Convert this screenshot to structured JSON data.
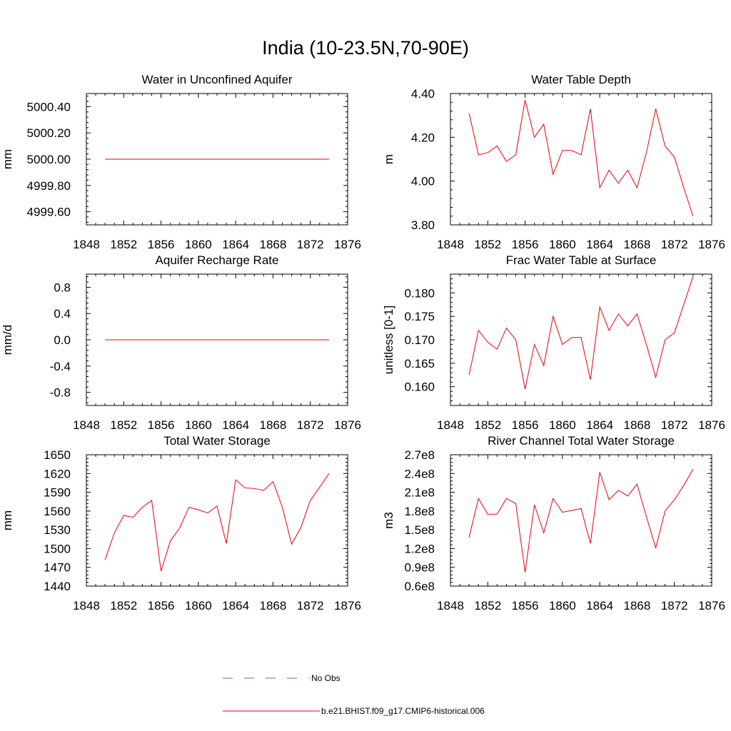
{
  "figure": {
    "title": "India (10-23.5N,70-90E)",
    "series_color": "#e8000b",
    "obs_color": "#6666aa"
  },
  "legend": [
    {
      "label": "No Obs",
      "style": "dashed",
      "color": "#6666aa"
    },
    {
      "label": "b.e21.BHIST.f09_g17.CMIP6-historical.006",
      "style": "solid",
      "color": "#e8000b"
    }
  ],
  "chart_data": [
    {
      "type": "line",
      "title": "Water in Unconfined Aquifer",
      "ylabel": "mm",
      "xlim": [
        1848,
        1876
      ],
      "ylim": [
        4999.5,
        5000.5
      ],
      "xticks": [
        1848,
        1852,
        1856,
        1860,
        1864,
        1868,
        1872,
        1876
      ],
      "yticks": [
        4999.6,
        4999.8,
        5000.0,
        5000.2,
        5000.4
      ],
      "ytick_labels": [
        "4999.60",
        "4999.80",
        "5000.00",
        "5000.20",
        "5000.40"
      ],
      "x": [
        1850,
        1851,
        1852,
        1853,
        1854,
        1855,
        1856,
        1857,
        1858,
        1859,
        1860,
        1861,
        1862,
        1863,
        1864,
        1865,
        1866,
        1867,
        1868,
        1869,
        1870,
        1871,
        1872,
        1873,
        1874
      ],
      "values": [
        5000,
        5000,
        5000,
        5000,
        5000,
        5000,
        5000,
        5000,
        5000,
        5000,
        5000,
        5000,
        5000,
        5000,
        5000,
        5000,
        5000,
        5000,
        5000,
        5000,
        5000,
        5000,
        5000,
        5000,
        5000
      ]
    },
    {
      "type": "line",
      "title": "Water Table Depth",
      "ylabel": "m",
      "xlim": [
        1848,
        1876
      ],
      "ylim": [
        3.8,
        4.4
      ],
      "xticks": [
        1848,
        1852,
        1856,
        1860,
        1864,
        1868,
        1872,
        1876
      ],
      "yticks": [
        3.8,
        4.0,
        4.2,
        4.4
      ],
      "ytick_labels": [
        "3.80",
        "4.00",
        "4.20",
        "4.40"
      ],
      "x": [
        1850,
        1851,
        1852,
        1853,
        1854,
        1855,
        1856,
        1857,
        1858,
        1859,
        1860,
        1861,
        1862,
        1863,
        1864,
        1865,
        1866,
        1867,
        1868,
        1869,
        1870,
        1871,
        1872,
        1873,
        1874
      ],
      "values": [
        4.31,
        4.12,
        4.13,
        4.16,
        4.09,
        4.12,
        4.37,
        4.2,
        4.26,
        4.03,
        4.14,
        4.14,
        4.12,
        4.33,
        3.97,
        4.05,
        3.99,
        4.05,
        3.97,
        4.13,
        4.33,
        4.16,
        4.11,
        3.97,
        3.84
      ]
    },
    {
      "type": "line",
      "title": "Aquifer Recharge Rate",
      "ylabel": "mm/d",
      "xlim": [
        1848,
        1876
      ],
      "ylim": [
        -1.0,
        1.0
      ],
      "xticks": [
        1848,
        1852,
        1856,
        1860,
        1864,
        1868,
        1872,
        1876
      ],
      "yticks": [
        -0.8,
        -0.4,
        0.0,
        0.4,
        0.8
      ],
      "ytick_labels": [
        "-0.8",
        "-0.4",
        "0.0",
        "0.4",
        "0.8"
      ],
      "x": [
        1850,
        1851,
        1852,
        1853,
        1854,
        1855,
        1856,
        1857,
        1858,
        1859,
        1860,
        1861,
        1862,
        1863,
        1864,
        1865,
        1866,
        1867,
        1868,
        1869,
        1870,
        1871,
        1872,
        1873,
        1874
      ],
      "values": [
        0,
        0,
        0,
        0,
        0,
        0,
        0,
        0,
        0,
        0,
        0,
        0,
        0,
        0,
        0,
        0,
        0,
        0,
        0,
        0,
        0,
        0,
        0,
        0,
        0
      ]
    },
    {
      "type": "line",
      "title": "Frac Water Table at Surface",
      "ylabel": "unitless [0-1]",
      "xlim": [
        1848,
        1876
      ],
      "ylim": [
        0.156,
        0.184
      ],
      "xticks": [
        1848,
        1852,
        1856,
        1860,
        1864,
        1868,
        1872,
        1876
      ],
      "yticks": [
        0.16,
        0.165,
        0.17,
        0.175,
        0.18
      ],
      "ytick_labels": [
        "0.160",
        "0.165",
        "0.170",
        "0.175",
        "0.180"
      ],
      "x": [
        1850,
        1851,
        1852,
        1853,
        1854,
        1855,
        1856,
        1857,
        1858,
        1859,
        1860,
        1861,
        1862,
        1863,
        1864,
        1865,
        1866,
        1867,
        1868,
        1869,
        1870,
        1871,
        1872,
        1873,
        1874
      ],
      "values": [
        0.1625,
        0.172,
        0.1695,
        0.168,
        0.1725,
        0.17,
        0.1595,
        0.169,
        0.1645,
        0.175,
        0.169,
        0.1705,
        0.1705,
        0.1615,
        0.177,
        0.172,
        0.1755,
        0.173,
        0.1755,
        0.169,
        0.162,
        0.17,
        0.1715,
        0.1775,
        0.1835
      ]
    },
    {
      "type": "line",
      "title": "Total Water Storage",
      "ylabel": "mm",
      "xlim": [
        1848,
        1876
      ],
      "ylim": [
        1440,
        1650
      ],
      "xticks": [
        1848,
        1852,
        1856,
        1860,
        1864,
        1868,
        1872,
        1876
      ],
      "yticks": [
        1440,
        1470,
        1500,
        1530,
        1560,
        1590,
        1620,
        1650
      ],
      "ytick_labels": [
        "1440",
        "1470",
        "1500",
        "1530",
        "1560",
        "1590",
        "1620",
        "1650"
      ],
      "x": [
        1850,
        1851,
        1852,
        1853,
        1854,
        1855,
        1856,
        1857,
        1858,
        1859,
        1860,
        1861,
        1862,
        1863,
        1864,
        1865,
        1866,
        1867,
        1868,
        1869,
        1870,
        1871,
        1872,
        1873,
        1874
      ],
      "values": [
        1482,
        1525,
        1553,
        1550,
        1566,
        1577,
        1464,
        1512,
        1533,
        1566,
        1562,
        1557,
        1568,
        1508,
        1610,
        1597,
        1596,
        1593,
        1607,
        1566,
        1507,
        1534,
        1577,
        1598,
        1620
      ]
    },
    {
      "type": "line",
      "title": "River Channel Total Water Storage",
      "ylabel": "m3",
      "xlim": [
        1848,
        1876
      ],
      "ylim": [
        60000000.0,
        270000000.0
      ],
      "xticks": [
        1848,
        1852,
        1856,
        1860,
        1864,
        1868,
        1872,
        1876
      ],
      "yticks": [
        60000000.0,
        90000000.0,
        120000000.0,
        150000000.0,
        180000000.0,
        210000000.0,
        240000000.0,
        270000000.0
      ],
      "ytick_labels": [
        "0.6e8",
        "0.9e8",
        "1.2e8",
        "1.5e8",
        "1.8e8",
        "2.1e8",
        "2.4e8",
        "2.7e8"
      ],
      "x": [
        1850,
        1851,
        1852,
        1853,
        1854,
        1855,
        1856,
        1857,
        1858,
        1859,
        1860,
        1861,
        1862,
        1863,
        1864,
        1865,
        1866,
        1867,
        1868,
        1869,
        1870,
        1871,
        1872,
        1873,
        1874
      ],
      "values": [
        138000000.0,
        200000000.0,
        175000000.0,
        175000000.0,
        200000000.0,
        192000000.0,
        82000000.0,
        190000000.0,
        145000000.0,
        200000000.0,
        178000000.0,
        181000000.0,
        184000000.0,
        128000000.0,
        242000000.0,
        198000000.0,
        213000000.0,
        204000000.0,
        223000000.0,
        171000000.0,
        121000000.0,
        180000000.0,
        198000000.0,
        221000000.0,
        247000000.0
      ]
    }
  ]
}
